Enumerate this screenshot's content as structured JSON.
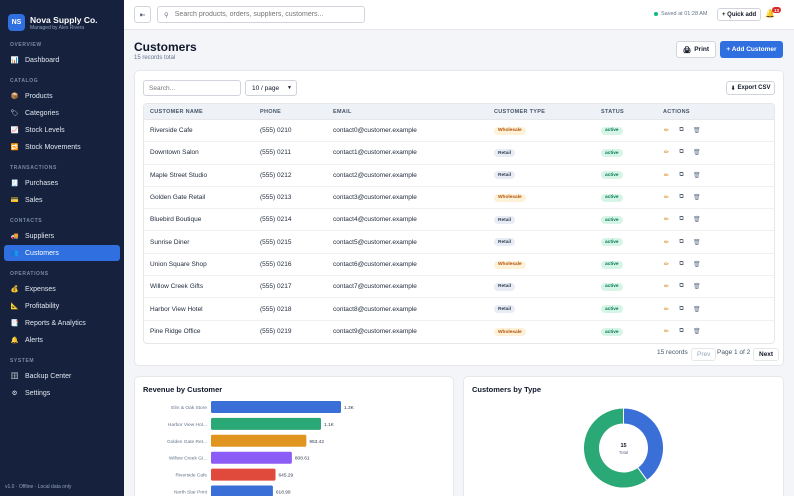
{
  "brand": {
    "initials": "NS",
    "name": "Nova Supply Co.",
    "subtitle": "Managed by Alex Rivera",
    "color": "#2f6fe0"
  },
  "sidebar": {
    "sections": [
      {
        "title": "OVERVIEW",
        "items": [
          {
            "label": "Dashboard",
            "icon": "chart-icon"
          }
        ]
      },
      {
        "title": "CATALOG",
        "items": [
          {
            "label": "Products",
            "icon": "box-icon"
          },
          {
            "label": "Categories",
            "icon": "tag-icon"
          },
          {
            "label": "Stock Levels",
            "icon": "trend-icon"
          },
          {
            "label": "Stock Movements",
            "icon": "swap-icon"
          }
        ]
      },
      {
        "title": "TRANSACTIONS",
        "items": [
          {
            "label": "Purchases",
            "icon": "receipt-icon"
          },
          {
            "label": "Sales",
            "icon": "card-icon"
          }
        ]
      },
      {
        "title": "CONTACTS",
        "items": [
          {
            "label": "Suppliers",
            "icon": "truck-icon"
          },
          {
            "label": "Customers",
            "icon": "people-icon",
            "active": true
          }
        ]
      },
      {
        "title": "OPERATIONS",
        "items": [
          {
            "label": "Expenses",
            "icon": "money-bag-icon"
          },
          {
            "label": "Profitability",
            "icon": "ruler-icon"
          },
          {
            "label": "Reports & Analytics",
            "icon": "report-icon"
          },
          {
            "label": "Alerts",
            "icon": "bell-icon"
          }
        ]
      },
      {
        "title": "SYSTEM",
        "items": [
          {
            "label": "Backup Center",
            "icon": "archive-icon"
          },
          {
            "label": "Settings",
            "icon": "gear-icon"
          }
        ]
      }
    ],
    "footer": "v1.0 · Offline · Local data only"
  },
  "topbar": {
    "collapse_icon": "collapse-icon",
    "search_placeholder": "Search products, orders, suppliers, customers...",
    "saved_text": "Saved at 01:28 AM",
    "quick_add": "+ Quick add",
    "alerts_count": "13"
  },
  "page": {
    "title": "Customers",
    "subtitle": "15 records total",
    "print_label": "Print",
    "add_label": "+ Add Customer"
  },
  "table": {
    "search_placeholder": "Search...",
    "page_size": "10 / page",
    "export_label": "Export CSV",
    "columns": [
      "CUSTOMER NAME",
      "PHONE",
      "EMAIL",
      "CUSTOMER TYPE",
      "STATUS",
      "ACTIONS"
    ],
    "rows": [
      {
        "name": "Riverside Cafe",
        "phone": "(555) 0210",
        "email": "contact0@customer.example",
        "type": "Wholesale",
        "status": "active"
      },
      {
        "name": "Downtown Salon",
        "phone": "(555) 0211",
        "email": "contact1@customer.example",
        "type": "Retail",
        "status": "active"
      },
      {
        "name": "Maple Street Studio",
        "phone": "(555) 0212",
        "email": "contact2@customer.example",
        "type": "Retail",
        "status": "active"
      },
      {
        "name": "Golden Gate Retail",
        "phone": "(555) 0213",
        "email": "contact3@customer.example",
        "type": "Wholesale",
        "status": "active"
      },
      {
        "name": "Bluebird Boutique",
        "phone": "(555) 0214",
        "email": "contact4@customer.example",
        "type": "Retail",
        "status": "active"
      },
      {
        "name": "Sunrise Diner",
        "phone": "(555) 0215",
        "email": "contact5@customer.example",
        "type": "Retail",
        "status": "active"
      },
      {
        "name": "Union Square Shop",
        "phone": "(555) 0216",
        "email": "contact6@customer.example",
        "type": "Wholesale",
        "status": "active"
      },
      {
        "name": "Willow Creek Gifts",
        "phone": "(555) 0217",
        "email": "contact7@customer.example",
        "type": "Retail",
        "status": "active"
      },
      {
        "name": "Harbor View Hotel",
        "phone": "(555) 0218",
        "email": "contact8@customer.example",
        "type": "Retail",
        "status": "active"
      },
      {
        "name": "Pine Ridge Office",
        "phone": "(555) 0219",
        "email": "contact9@customer.example",
        "type": "Wholesale",
        "status": "active"
      }
    ],
    "row_actions": [
      "edit-icon",
      "duplicate-icon",
      "delete-icon"
    ],
    "pagination": {
      "records": "15 records",
      "prev": "Prev",
      "page_info": "Page 1 of 2",
      "next": "Next"
    }
  },
  "chart_data": [
    {
      "type": "bar",
      "orientation": "horizontal",
      "title": "Revenue by Customer",
      "categories": [
        "Elm & Oak Store",
        "Harbor View Hot...",
        "Golden Gate Ret...",
        "Willow Creek Gi...",
        "Riverside Cafe",
        "North Star Print"
      ],
      "values": [
        1300,
        1100,
        953.42,
        808.61,
        645.29,
        618.99
      ],
      "value_labels": [
        "1.3K",
        "1.1K",
        "953.42",
        "808.61",
        "645.29",
        "618.99"
      ],
      "colors": [
        "#3b6fd8",
        "#2aa876",
        "#e0951f",
        "#8b5cf6",
        "#e04a3c",
        "#3b6fd8"
      ],
      "grid": false,
      "legend": "none"
    },
    {
      "type": "pie",
      "donut": true,
      "title": "Customers by Type",
      "center_value": "15",
      "center_label": "Total",
      "slices": [
        {
          "label": "Retail",
          "value": 9,
          "color": "#2aa876"
        },
        {
          "label": "Wholesale",
          "value": 6,
          "color": "#3b6fd8"
        }
      ],
      "legend": "none"
    }
  ]
}
